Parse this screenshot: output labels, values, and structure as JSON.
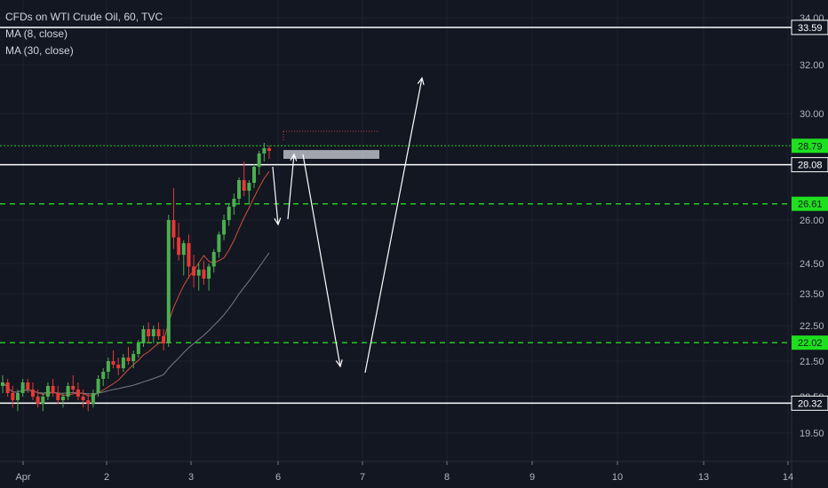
{
  "legend": {
    "title": "CFDs on WTI Crude Oil, 60, TVC",
    "ma8": "MA (8, close)",
    "ma30": "MA (30, close)"
  },
  "chart_data": {
    "type": "candlestick",
    "symbol": "CFDs on WTI Crude Oil",
    "interval": "60",
    "source": "TVC",
    "x_ticks": [
      "Apr",
      "2",
      "3",
      "6",
      "7",
      "8",
      "9",
      "10",
      "13",
      "14"
    ],
    "y_ticks": [
      34.0,
      32.0,
      30.0,
      26.0,
      24.5,
      23.5,
      22.5,
      21.5,
      20.5,
      19.5
    ],
    "price_labels": [
      {
        "value": 33.59,
        "label": "33.59",
        "style": "white-line"
      },
      {
        "value": 28.79,
        "label": "28.79",
        "style": "green-dotted"
      },
      {
        "value": 28.08,
        "label": "28.08",
        "style": "white-line"
      },
      {
        "value": 26.61,
        "label": "26.61",
        "style": "green-dashed"
      },
      {
        "value": 22.02,
        "label": "22.02",
        "style": "green-dashed"
      },
      {
        "value": 20.32,
        "label": "20.32",
        "style": "white-line"
      }
    ],
    "colors": {
      "background": "#131722",
      "up": "#4caf50",
      "down": "#e53935",
      "ma8": "#d14f3c",
      "ma30": "#787b86",
      "green_level": "#22c922",
      "label_green": "#1ee01e",
      "grid": "#1e222d"
    },
    "candles": [
      [
        20.8,
        21.1,
        20.6,
        20.9
      ],
      [
        20.9,
        21.0,
        20.5,
        20.6
      ],
      [
        20.6,
        20.8,
        20.2,
        20.4
      ],
      [
        20.4,
        20.7,
        20.1,
        20.6
      ],
      [
        20.6,
        21.0,
        20.5,
        20.9
      ],
      [
        20.9,
        21.0,
        20.6,
        20.7
      ],
      [
        20.7,
        20.9,
        20.4,
        20.5
      ],
      [
        20.5,
        20.7,
        20.2,
        20.3
      ],
      [
        20.3,
        20.6,
        20.1,
        20.5
      ],
      [
        20.5,
        20.9,
        20.4,
        20.8
      ],
      [
        20.8,
        21.0,
        20.5,
        20.6
      ],
      [
        20.6,
        20.8,
        20.3,
        20.4
      ],
      [
        20.4,
        20.6,
        20.2,
        20.5
      ],
      [
        20.5,
        20.9,
        20.4,
        20.8
      ],
      [
        20.8,
        21.1,
        20.6,
        20.7
      ],
      [
        20.7,
        20.9,
        20.4,
        20.5
      ],
      [
        20.5,
        20.7,
        20.2,
        20.4
      ],
      [
        20.4,
        20.6,
        20.1,
        20.3
      ],
      [
        20.3,
        20.7,
        20.2,
        20.6
      ],
      [
        20.6,
        21.1,
        20.5,
        21.0
      ],
      [
        21.0,
        21.3,
        20.8,
        21.2
      ],
      [
        21.2,
        21.6,
        21.0,
        21.5
      ],
      [
        21.5,
        21.8,
        21.3,
        21.4
      ],
      [
        21.4,
        21.6,
        21.1,
        21.3
      ],
      [
        21.3,
        21.7,
        21.2,
        21.6
      ],
      [
        21.6,
        21.9,
        21.4,
        21.5
      ],
      [
        21.5,
        21.8,
        21.3,
        21.7
      ],
      [
        21.7,
        22.1,
        21.6,
        22.0
      ],
      [
        22.0,
        22.5,
        21.9,
        22.4
      ],
      [
        22.4,
        22.6,
        22.0,
        22.2
      ],
      [
        22.2,
        22.5,
        22.0,
        22.4
      ],
      [
        22.4,
        22.6,
        22.1,
        22.2
      ],
      [
        22.2,
        22.4,
        21.8,
        22.0
      ],
      [
        22.0,
        26.2,
        21.9,
        26.0
      ],
      [
        26.0,
        27.2,
        25.0,
        25.4
      ],
      [
        25.4,
        25.9,
        24.6,
        24.8
      ],
      [
        24.8,
        25.3,
        24.1,
        25.2
      ],
      [
        25.2,
        25.5,
        24.0,
        24.4
      ],
      [
        24.4,
        24.8,
        23.7,
        24.1
      ],
      [
        24.1,
        24.5,
        23.6,
        24.3
      ],
      [
        24.3,
        24.6,
        23.8,
        24.0
      ],
      [
        24.0,
        24.5,
        23.6,
        24.4
      ],
      [
        24.4,
        25.0,
        24.2,
        24.9
      ],
      [
        24.9,
        25.6,
        24.7,
        25.5
      ],
      [
        25.5,
        26.2,
        25.3,
        26.0
      ],
      [
        26.0,
        26.6,
        25.8,
        26.5
      ],
      [
        26.5,
        27.0,
        26.2,
        26.8
      ],
      [
        26.8,
        27.6,
        26.6,
        27.5
      ],
      [
        27.5,
        28.2,
        26.9,
        27.1
      ],
      [
        27.1,
        27.5,
        26.6,
        27.4
      ],
      [
        27.4,
        28.1,
        27.2,
        28.0
      ],
      [
        28.0,
        28.6,
        27.7,
        28.5
      ],
      [
        28.5,
        28.9,
        28.2,
        28.7
      ],
      [
        28.7,
        28.8,
        28.3,
        28.6
      ]
    ]
  }
}
